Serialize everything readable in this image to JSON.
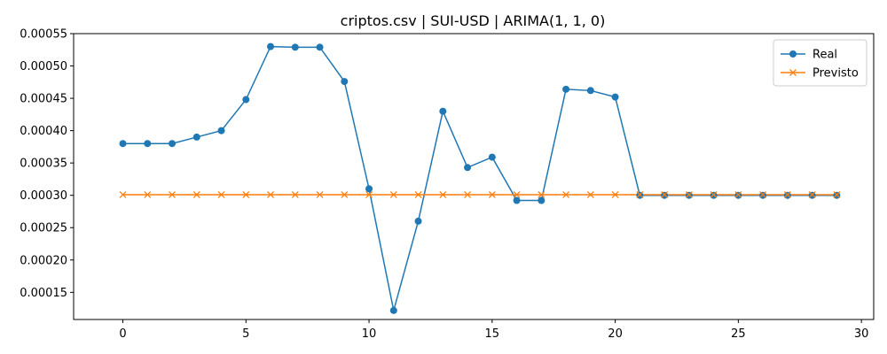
{
  "chart_data": {
    "type": "line",
    "title": "criptos.csv | SUI-USD | ARIMA(1, 1, 0)",
    "xlabel": "",
    "ylabel": "",
    "xlim": [
      -2,
      30.5
    ],
    "ylim": [
      0.000108,
      0.00055
    ],
    "x_ticks": [
      0,
      5,
      10,
      15,
      20,
      25,
      30
    ],
    "y_ticks": [
      0.00015,
      0.0002,
      0.00025,
      0.0003,
      0.00035,
      0.0004,
      0.00045,
      0.0005,
      0.00055
    ],
    "y_tick_labels": [
      "0.00015",
      "0.00020",
      "0.00025",
      "0.00030",
      "0.00035",
      "0.00040",
      "0.00045",
      "0.00050",
      "0.00055"
    ],
    "x_tick_labels": [
      "0",
      "5",
      "10",
      "15",
      "20",
      "25",
      "30"
    ],
    "grid": false,
    "legend_position": "top-right",
    "series": [
      {
        "name": "Real",
        "color": "#1f77b4",
        "marker": "circle",
        "x": [
          0,
          1,
          2,
          3,
          4,
          5,
          6,
          7,
          8,
          9,
          10,
          11,
          12,
          13,
          14,
          15,
          16,
          17,
          18,
          19,
          20,
          21,
          22,
          23,
          24,
          25,
          26,
          27,
          28,
          29
        ],
        "values": [
          0.00038,
          0.00038,
          0.00038,
          0.00039,
          0.0004,
          0.000448,
          0.00053,
          0.000529,
          0.000529,
          0.000476,
          0.00031,
          0.000122,
          0.00026,
          0.00043,
          0.000343,
          0.000359,
          0.000292,
          0.000292,
          0.000464,
          0.000462,
          0.000452,
          0.0003,
          0.0003,
          0.0003,
          0.0003,
          0.0003,
          0.0003,
          0.0003,
          0.0003,
          0.0003
        ]
      },
      {
        "name": "Previsto",
        "color": "#ff7f0e",
        "marker": "x",
        "x": [
          0,
          1,
          2,
          3,
          4,
          5,
          6,
          7,
          8,
          9,
          10,
          11,
          12,
          13,
          14,
          15,
          16,
          17,
          18,
          19,
          20,
          21,
          22,
          23,
          24,
          25,
          26,
          27,
          28,
          29
        ],
        "values": [
          0.000301,
          0.000301,
          0.000301,
          0.000301,
          0.000301,
          0.000301,
          0.000301,
          0.000301,
          0.000301,
          0.000301,
          0.000301,
          0.000301,
          0.000301,
          0.000301,
          0.000301,
          0.000301,
          0.000301,
          0.000301,
          0.000301,
          0.000301,
          0.000301,
          0.000301,
          0.000301,
          0.000301,
          0.000301,
          0.000301,
          0.000301,
          0.000301,
          0.000301,
          0.000301
        ]
      }
    ]
  }
}
